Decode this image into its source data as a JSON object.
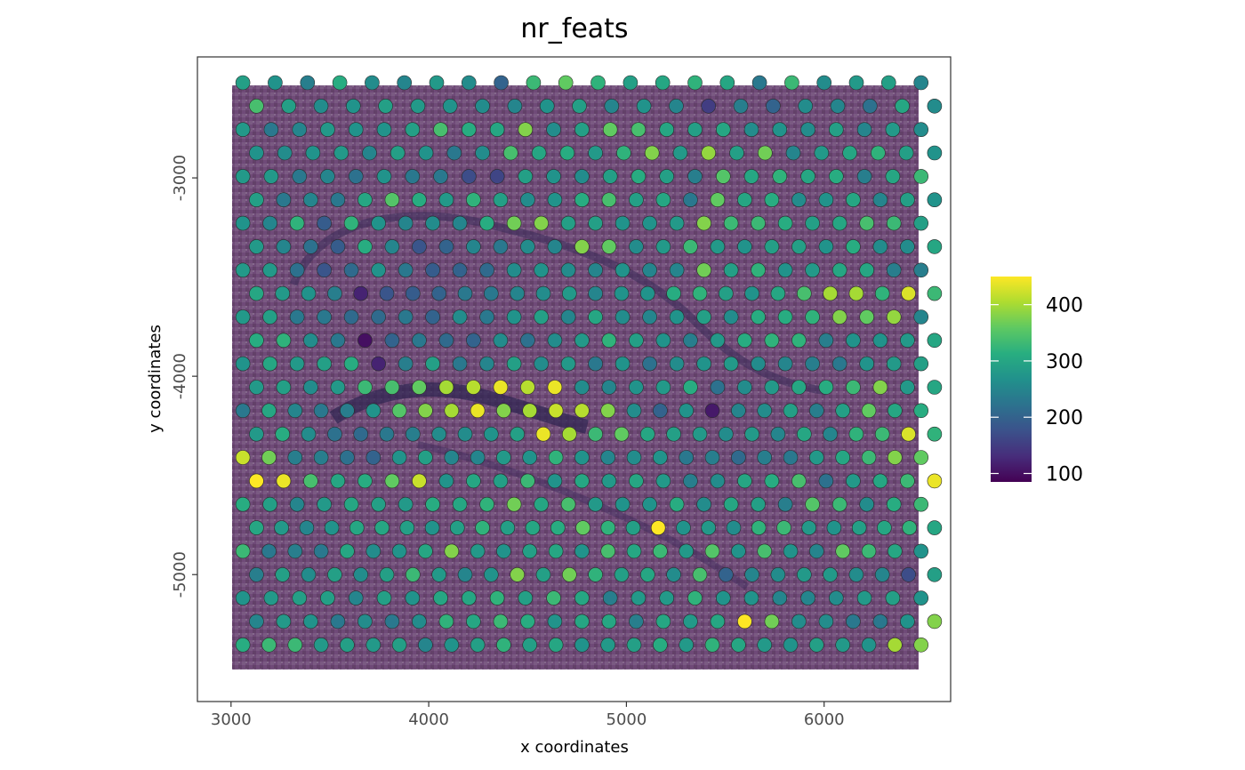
{
  "chart_data": {
    "type": "scatter",
    "title": "nr_feats",
    "xlabel": "x coordinates",
    "ylabel": "y coordinates",
    "xlim": [
      2830,
      6640
    ],
    "ylim": [
      -5640,
      -2390
    ],
    "x_ticks": [
      3000,
      4000,
      5000,
      6000
    ],
    "y_ticks": [
      -3000,
      -4000,
      -5000
    ],
    "x_tick_labels": [
      "3000",
      "4000",
      "5000",
      "6000"
    ],
    "y_tick_labels": [
      "-3000",
      "-4000",
      "-5000"
    ],
    "grid": false,
    "background": "tissue image (purple H&E-like), x 3020–6490, y -5470 to -2520",
    "spot_grid": {
      "x_start": 3060,
      "x_step": 137.2,
      "cols": 26,
      "odd_row_offset": 68.6,
      "y_start": -2520,
      "y_step": -118.1,
      "rows": 25,
      "description": "hexagonal Visium spot lattice; every spot coloured by nr_feats"
    },
    "series": [
      {
        "name": "nr_feats",
        "values": [
          [
            290,
            270,
            240,
            310,
            260,
            250,
            280,
            260,
            200,
            330,
            360,
            320,
            290,
            300,
            320,
            300,
            230,
            330,
            260,
            280,
            290,
            250
          ],
          [
            340,
            290,
            260,
            270,
            290,
            280,
            270,
            260,
            250,
            270,
            290,
            250,
            270,
            250,
            150,
            240,
            200,
            260,
            250,
            220,
            300,
            260
          ],
          [
            280,
            230,
            250,
            280,
            270,
            270,
            290,
            340,
            310,
            300,
            380,
            260,
            290,
            360,
            340,
            300,
            290,
            300,
            260,
            270,
            260,
            290,
            250,
            280,
            260
          ],
          [
            270,
            260,
            270,
            280,
            250,
            290,
            270,
            230,
            260,
            340,
            300,
            310,
            280,
            320,
            380,
            280,
            390,
            290,
            370,
            250,
            280,
            300,
            320,
            290,
            270
          ],
          [
            280,
            280,
            230,
            250,
            220,
            270,
            230,
            230,
            170,
            160,
            290,
            270,
            260,
            290,
            310,
            290,
            240,
            350,
            300,
            320,
            300,
            310,
            240,
            300,
            330
          ],
          [
            290,
            230,
            250,
            230,
            300,
            350,
            310,
            280,
            320,
            290,
            260,
            270,
            310,
            340,
            290,
            300,
            230,
            360,
            300,
            310,
            260,
            270,
            300,
            250,
            290,
            270
          ],
          [
            270,
            250,
            320,
            190,
            320,
            270,
            250,
            260,
            250,
            310,
            370,
            380,
            290,
            290,
            270,
            270,
            280,
            380,
            330,
            330,
            310,
            290,
            300,
            340,
            330,
            290
          ],
          [
            280,
            250,
            220,
            190,
            310,
            250,
            180,
            200,
            250,
            230,
            260,
            250,
            380,
            360,
            260,
            280,
            330,
            280,
            270,
            290,
            290,
            270,
            310,
            260,
            260,
            300
          ],
          [
            280,
            280,
            220,
            180,
            210,
            270,
            230,
            190,
            200,
            210,
            260,
            270,
            260,
            250,
            270,
            250,
            250,
            370,
            290,
            320,
            270,
            280,
            300,
            300,
            240,
            240
          ],
          [
            300,
            280,
            270,
            240,
            120,
            180,
            190,
            200,
            230,
            230,
            250,
            260,
            280,
            250,
            270,
            270,
            310,
            320,
            290,
            270,
            300,
            340,
            400,
            400,
            320,
            430,
            330
          ],
          [
            280,
            290,
            230,
            230,
            210,
            210,
            230,
            200,
            260,
            230,
            270,
            290,
            250,
            300,
            260,
            250,
            270,
            290,
            260,
            310,
            310,
            320,
            380,
            360,
            390,
            250
          ],
          [
            310,
            320,
            260,
            230,
            100,
            200,
            230,
            210,
            200,
            260,
            220,
            260,
            280,
            320,
            290,
            270,
            240,
            280,
            310,
            320,
            320,
            240,
            270,
            270,
            280,
            300
          ],
          [
            270,
            300,
            280,
            290,
            310,
            120,
            240,
            290,
            230,
            250,
            290,
            260,
            280,
            230,
            270,
            220,
            260,
            270,
            280,
            260,
            250,
            240,
            230,
            270,
            280,
            290
          ],
          [
            280,
            290,
            260,
            280,
            330,
            340,
            360,
            400,
            410,
            440,
            410,
            440,
            260,
            250,
            270,
            280,
            310,
            220,
            260,
            280,
            300,
            310,
            330,
            380,
            280,
            300
          ],
          [
            230,
            300,
            250,
            230,
            240,
            270,
            350,
            380,
            400,
            440,
            380,
            400,
            420,
            410,
            380,
            260,
            200,
            270,
            110,
            250,
            260,
            290,
            240,
            290,
            360,
            300,
            310
          ],
          [
            280,
            310,
            260,
            220,
            210,
            230,
            240,
            260,
            260,
            270,
            290,
            440,
            400,
            330,
            360,
            300,
            290,
            280,
            260,
            280,
            250,
            300,
            250,
            320,
            330,
            430,
            320
          ],
          [
            420,
            370,
            240,
            240,
            220,
            200,
            270,
            290,
            250,
            250,
            280,
            270,
            320,
            270,
            250,
            260,
            270,
            230,
            240,
            210,
            240,
            230,
            280,
            300,
            330,
            380,
            360
          ],
          [
            450,
            440,
            340,
            300,
            310,
            360,
            420,
            270,
            300,
            290,
            330,
            270,
            300,
            280,
            300,
            280,
            240,
            260,
            300,
            310,
            340,
            220,
            280,
            300,
            330,
            440
          ],
          [
            310,
            290,
            250,
            280,
            300,
            290,
            280,
            310,
            300,
            320,
            370,
            300,
            340,
            280,
            270,
            270,
            310,
            260,
            300,
            290,
            240,
            350,
            330,
            260,
            310,
            330
          ],
          [
            300,
            280,
            250,
            270,
            300,
            300,
            290,
            270,
            290,
            320,
            290,
            300,
            310,
            360,
            320,
            290,
            450,
            270,
            280,
            260,
            320,
            330,
            280,
            270,
            290,
            300,
            320,
            300
          ],
          [
            330,
            230,
            240,
            230,
            300,
            260,
            270,
            300,
            380,
            280,
            270,
            290,
            300,
            270,
            340,
            300,
            330,
            280,
            350,
            270,
            340,
            270,
            250,
            360,
            330,
            300,
            270
          ],
          [
            240,
            290,
            260,
            290,
            260,
            290,
            330,
            280,
            250,
            270,
            380,
            290,
            370,
            320,
            290,
            300,
            260,
            340,
            200,
            250,
            260,
            280,
            280,
            260,
            250,
            170,
            290
          ],
          [
            270,
            280,
            290,
            290,
            250,
            290,
            270,
            300,
            300,
            320,
            290,
            330,
            300,
            240,
            280,
            280,
            320,
            270,
            270,
            250,
            250,
            260,
            280,
            290,
            270
          ],
          [
            250,
            280,
            270,
            230,
            260,
            230,
            260,
            320,
            300,
            330,
            310,
            270,
            300,
            300,
            240,
            300,
            280,
            300,
            450,
            370,
            260,
            260,
            230,
            230,
            270,
            380
          ],
          [
            310,
            330,
            330,
            280,
            290,
            280,
            290,
            250,
            270,
            290,
            320,
            290,
            300,
            270,
            280,
            290,
            310,
            280,
            320,
            300,
            280,
            270,
            290,
            280,
            270,
            400,
            380
          ]
        ]
      }
    ],
    "colorbar": {
      "palette": "viridis",
      "range": [
        85,
        450
      ],
      "ticks": [
        100,
        200,
        300,
        400
      ],
      "tick_labels": [
        "100",
        "200",
        "300",
        "400"
      ],
      "position": "right"
    }
  }
}
